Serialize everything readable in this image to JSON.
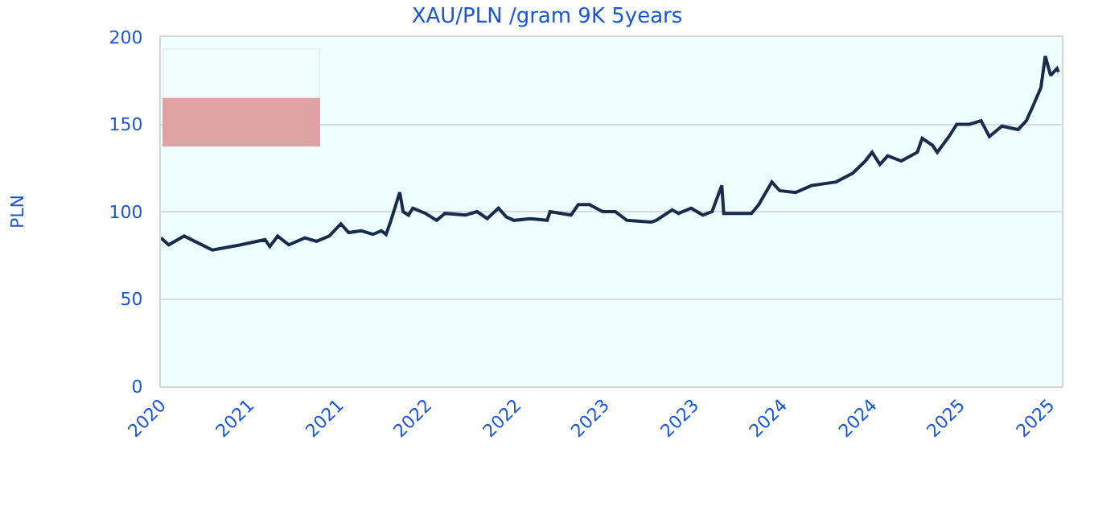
{
  "chart_data": {
    "type": "line",
    "title": "XAU/PLN /gram 9K 5years",
    "ylabel": "PLN",
    "x": [
      "2020-11-01",
      "2020-11-17",
      "2020-12-19",
      "2021-02-15",
      "2021-04-14",
      "2021-06-03",
      "2021-06-13",
      "2021-06-29",
      "2021-07-22",
      "2021-08-24",
      "2021-09-17",
      "2021-10-13",
      "2021-11-06",
      "2021-11-22",
      "2021-12-18",
      "2022-01-11",
      "2022-01-28",
      "2022-02-07",
      "2022-02-17",
      "2022-03-07",
      "2022-03-14",
      "2022-03-25",
      "2022-04-03",
      "2022-04-29",
      "2022-05-22",
      "2022-06-08",
      "2022-07-20",
      "2022-08-13",
      "2022-09-03",
      "2022-09-26",
      "2022-10-12",
      "2022-10-28",
      "2022-12-01",
      "2023-01-04",
      "2023-01-10",
      "2023-02-22",
      "2023-03-09",
      "2023-04-01",
      "2023-04-28",
      "2023-05-24",
      "2023-06-17",
      "2023-08-06",
      "2023-08-16",
      "2023-09-18",
      "2023-10-01",
      "2023-10-27",
      "2023-11-20",
      "2023-12-09",
      "2023-12-29",
      "2024-01-02",
      "2024-02-28",
      "2024-03-14",
      "2024-04-10",
      "2024-04-26",
      "2024-05-29",
      "2024-07-01",
      "2024-08-20",
      "2024-09-23",
      "2024-10-19",
      "2024-11-02",
      "2024-11-18",
      "2024-12-04",
      "2025-01-01",
      "2025-02-03",
      "2025-02-13",
      "2025-03-06",
      "2025-03-16",
      "2025-04-09",
      "2025-04-25",
      "2025-05-21",
      "2025-06-14",
      "2025-07-01",
      "2025-07-27",
      "2025-08-29",
      "2025-09-15",
      "2025-09-28",
      "2025-10-15",
      "2025-10-24",
      "2025-11-04",
      "2025-11-17",
      "2025-11-20"
    ],
    "series": [
      {
        "color": "#172b4d",
        "values": [
          85,
          81,
          86,
          78,
          81,
          84,
          80,
          86,
          81,
          85,
          83,
          86,
          93,
          88,
          89,
          87,
          89,
          87,
          95,
          111,
          100,
          98,
          102,
          99,
          95,
          99,
          98,
          100,
          96,
          102,
          97,
          95,
          96,
          95,
          100,
          98,
          104,
          104,
          100,
          100,
          95,
          94,
          95,
          101,
          99,
          102,
          98,
          100,
          115,
          99,
          99,
          104,
          117,
          112,
          111,
          115,
          117,
          122,
          129,
          134,
          127,
          132,
          129,
          134,
          142,
          138,
          134,
          143,
          150,
          150,
          152,
          143,
          149,
          147,
          152,
          160,
          171,
          189,
          178,
          182,
          180
        ]
      }
    ],
    "xlim": [
      "2020-11-01",
      "2025-11-27"
    ],
    "xticks": [
      {
        "value": "2020-11-01",
        "label": "2020"
      },
      {
        "value": "2021-05-01",
        "label": "2021"
      },
      {
        "value": "2021-11-01",
        "label": "2021"
      },
      {
        "value": "2022-05-01",
        "label": "2022"
      },
      {
        "value": "2022-11-01",
        "label": "2022"
      },
      {
        "value": "2023-05-01",
        "label": "2023"
      },
      {
        "value": "2023-11-01",
        "label": "2023"
      },
      {
        "value": "2024-05-01",
        "label": "2024"
      },
      {
        "value": "2024-11-01",
        "label": "2024"
      },
      {
        "value": "2025-05-01",
        "label": "2025"
      },
      {
        "value": "2025-11-01",
        "label": "2025"
      }
    ],
    "ylim": [
      0,
      200
    ],
    "yticks": [
      0,
      50,
      100,
      150,
      200
    ],
    "grid": "y",
    "marker": "none",
    "line_style": "solid"
  }
}
